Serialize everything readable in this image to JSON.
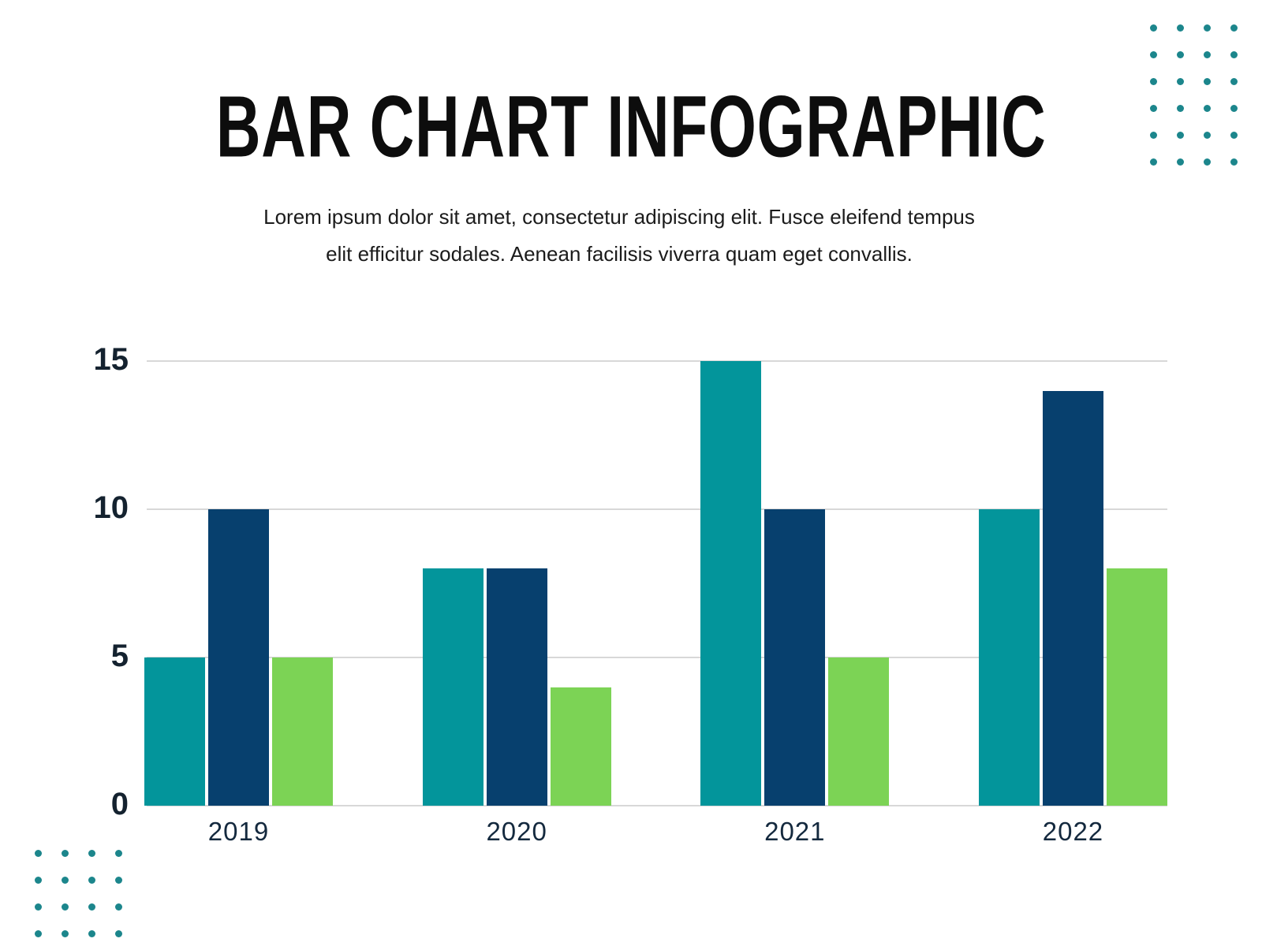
{
  "header": {
    "title": "BAR CHART INFOGRAPHIC",
    "subtitle_line1": "Lorem ipsum dolor sit amet, consectetur adipiscing elit. Fusce eleifend tempus",
    "subtitle_line2": "elit efficitur sodales. Aenean facilisis viverra quam eget convallis."
  },
  "chart_data": {
    "type": "bar",
    "title": "BAR CHART INFOGRAPHIC",
    "categories": [
      "2019",
      "2020",
      "2021",
      "2022"
    ],
    "series": [
      {
        "name": "teal-series",
        "color": "#03959b",
        "values": [
          5,
          8,
          15,
          10
        ]
      },
      {
        "name": "navy-series",
        "color": "#07406e",
        "values": [
          10,
          8,
          10,
          14
        ]
      },
      {
        "name": "green-series",
        "color": "#7cd355",
        "values": [
          5,
          4,
          5,
          8
        ]
      }
    ],
    "xlabel": "",
    "ylabel": "",
    "ylim": [
      0,
      15
    ],
    "yticks": [
      0,
      5,
      10,
      15
    ],
    "grid": true,
    "gridline_color": "#d8d8d8",
    "legend_position": "none",
    "axis_label_color": "#14222f"
  },
  "decor": {
    "dot_color": "#1c868c",
    "top_right_grid": {
      "columns": 4,
      "rows": 6
    },
    "bottom_left_grid": {
      "columns": 4,
      "rows": 4
    }
  }
}
